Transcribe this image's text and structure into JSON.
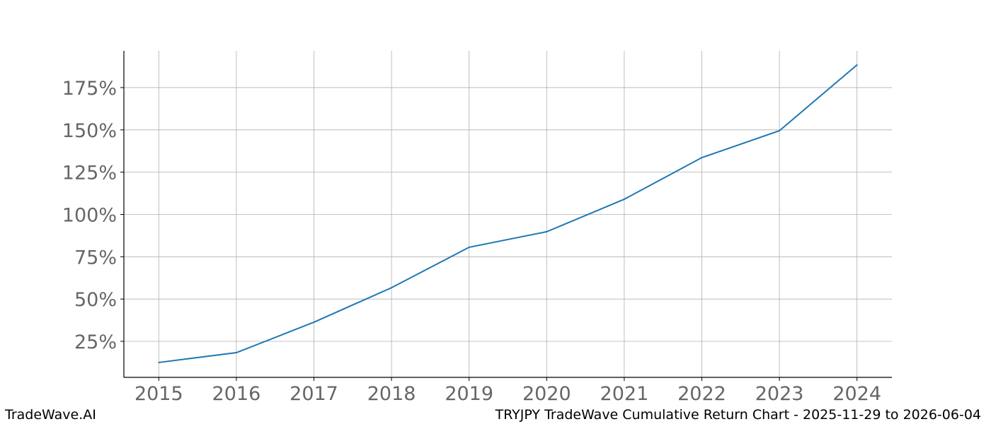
{
  "chart_data": {
    "type": "line",
    "title": "",
    "xlabel": "",
    "ylabel": "",
    "x": [
      2015,
      2016,
      2017,
      2018,
      2019,
      2020,
      2021,
      2022,
      2023,
      2024
    ],
    "series": [
      {
        "values": [
          12.5,
          18.3,
          36.3,
          56.7,
          80.6,
          89.8,
          109.0,
          133.6,
          149.5,
          188.4
        ],
        "color": "#1f77b4"
      }
    ],
    "xlim": [
      2014.55,
      2024.45
    ],
    "ylim": [
      3.7,
      196.7
    ],
    "yticks": [
      25,
      50,
      75,
      100,
      125,
      150,
      175
    ],
    "ytick_labels": [
      "25%",
      "50%",
      "75%",
      "100%",
      "125%",
      "150%",
      "175%"
    ],
    "xticks": [
      2015,
      2016,
      2017,
      2018,
      2019,
      2020,
      2021,
      2022,
      2023,
      2024
    ],
    "xtick_labels": [
      "2015",
      "2016",
      "2017",
      "2018",
      "2019",
      "2020",
      "2021",
      "2022",
      "2023",
      "2024"
    ],
    "grid": true,
    "legend": "none"
  },
  "footer": {
    "brand": "TradeWave.AI",
    "caption": "TRYJPY TradeWave Cumulative Return Chart - 2025-11-29 to 2026-06-04"
  }
}
